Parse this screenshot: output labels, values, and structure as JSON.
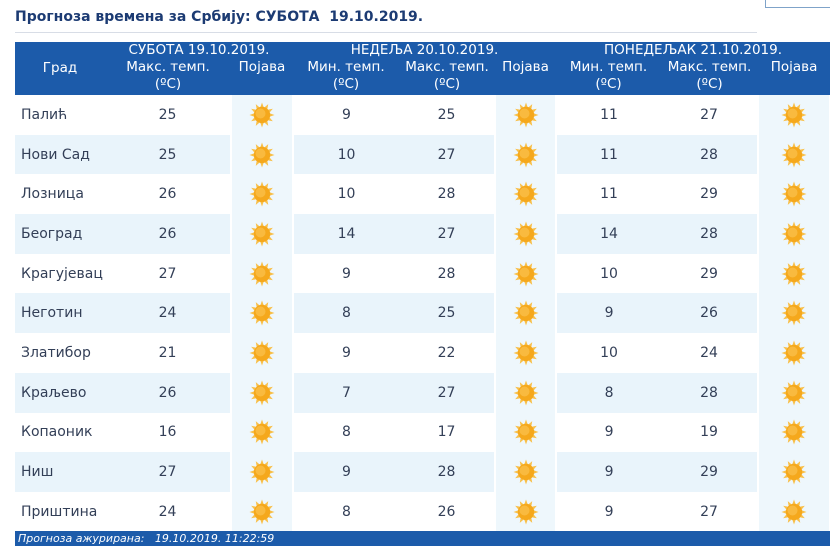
{
  "page_title": "Прогноза времена за Србију: СУБОТА  19.10.2019.",
  "header": {
    "city": "Град",
    "days": [
      {
        "label": "СУБОТА  19.10.2019.",
        "cols": [
          "Макс. темп.",
          "Појава"
        ],
        "unit": "(ºC)"
      },
      {
        "label": "НЕДЕЉА  20.10.2019.",
        "cols": [
          "Мин. темп.",
          "Макс. темп.",
          "Појава"
        ],
        "unit": "(ºC)"
      },
      {
        "label": "ПОНЕДЕЉАК  21.10.2019.",
        "cols": [
          "Мин. темп.",
          "Макс. темп.",
          "Појава"
        ],
        "unit": "(ºC)"
      }
    ]
  },
  "weather_icon": "sun-icon",
  "rows": [
    {
      "city": "Палић",
      "d1_max": "25",
      "d2_min": "9",
      "d2_max": "25",
      "d3_min": "11",
      "d3_max": "27"
    },
    {
      "city": "Нови Сад",
      "d1_max": "25",
      "d2_min": "10",
      "d2_max": "27",
      "d3_min": "11",
      "d3_max": "28"
    },
    {
      "city": "Лозница",
      "d1_max": "26",
      "d2_min": "10",
      "d2_max": "28",
      "d3_min": "11",
      "d3_max": "29"
    },
    {
      "city": "Београд",
      "d1_max": "26",
      "d2_min": "14",
      "d2_max": "27",
      "d3_min": "14",
      "d3_max": "28"
    },
    {
      "city": "Крагујевац",
      "d1_max": "27",
      "d2_min": "9",
      "d2_max": "28",
      "d3_min": "10",
      "d3_max": "29"
    },
    {
      "city": "Неготин",
      "d1_max": "24",
      "d2_min": "8",
      "d2_max": "25",
      "d3_min": "9",
      "d3_max": "26"
    },
    {
      "city": "Златибор",
      "d1_max": "21",
      "d2_min": "9",
      "d2_max": "22",
      "d3_min": "10",
      "d3_max": "24"
    },
    {
      "city": "Краљево",
      "d1_max": "26",
      "d2_min": "7",
      "d2_max": "27",
      "d3_min": "8",
      "d3_max": "28"
    },
    {
      "city": "Копаоник",
      "d1_max": "16",
      "d2_min": "8",
      "d2_max": "17",
      "d3_min": "9",
      "d3_max": "19"
    },
    {
      "city": "Ниш",
      "d1_max": "27",
      "d2_min": "9",
      "d2_max": "28",
      "d3_min": "9",
      "d3_max": "29"
    },
    {
      "city": "Приштина",
      "d1_max": "24",
      "d2_min": "8",
      "d2_max": "26",
      "d3_min": "9",
      "d3_max": "27"
    }
  ],
  "footer": "Прогноза ажурирана:   19.10.2019. 11:22:59",
  "colors": {
    "header_bg": "#1c5baa",
    "title": "#1c3b73",
    "stripe": "#e9f4fb",
    "sun": "#f5a81c"
  }
}
